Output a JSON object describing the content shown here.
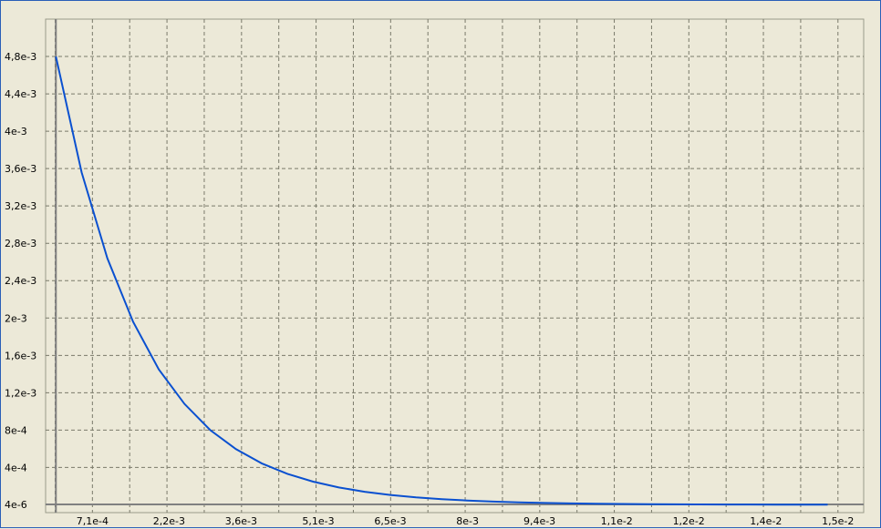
{
  "chart_data": {
    "type": "line",
    "title": "",
    "xlabel": "",
    "ylabel": "",
    "xlim": [
      -0.0002,
      0.0157
    ],
    "ylim": [
      -8.33e-05,
      0.0052
    ],
    "grid": true,
    "x_ticks": [
      {
        "value": 0.00071,
        "label": "7,1e-4"
      },
      {
        "value": 0.0022,
        "label": "2,2e-3"
      },
      {
        "value": 0.0036,
        "label": "3,6e-3"
      },
      {
        "value": 0.0051,
        "label": "5,1e-3"
      },
      {
        "value": 0.0065,
        "label": "6,5e-3"
      },
      {
        "value": 0.008,
        "label": "8e-3"
      },
      {
        "value": 0.0094,
        "label": "9,4e-3"
      },
      {
        "value": 0.0109,
        "label": "1,1e-2"
      },
      {
        "value": 0.0123,
        "label": "1,2e-2"
      },
      {
        "value": 0.0138,
        "label": "1,4e-2"
      },
      {
        "value": 0.0152,
        "label": "1,5e-2"
      }
    ],
    "y_ticks": [
      {
        "value": 4e-06,
        "label": "4e-6"
      },
      {
        "value": 0.0004,
        "label": "4e-4"
      },
      {
        "value": 0.0008,
        "label": "8e-4"
      },
      {
        "value": 0.0012,
        "label": "1,2e-3"
      },
      {
        "value": 0.0016,
        "label": "1,6e-3"
      },
      {
        "value": 0.002,
        "label": "2e-3"
      },
      {
        "value": 0.0024,
        "label": "2,4e-3"
      },
      {
        "value": 0.0028,
        "label": "2,8e-3"
      },
      {
        "value": 0.0032,
        "label": "3,2e-3"
      },
      {
        "value": 0.0036,
        "label": "3,6e-3"
      },
      {
        "value": 0.004,
        "label": "4e-3"
      },
      {
        "value": 0.0044,
        "label": "4,4e-3"
      },
      {
        "value": 0.0048,
        "label": "4,8e-3"
      }
    ],
    "series": [
      {
        "color": "#0A50D0",
        "x": [
          0.0,
          0.0005,
          0.001,
          0.0015,
          0.002,
          0.0025,
          0.003,
          0.0035,
          0.004,
          0.0045,
          0.005,
          0.0055,
          0.006,
          0.0065,
          0.007,
          0.0075,
          0.008,
          0.0085,
          0.009,
          0.0095,
          0.01,
          0.0105,
          0.011,
          0.0115,
          0.012,
          0.0125,
          0.013,
          0.0135,
          0.014,
          0.0145,
          0.015
        ],
        "y": [
          0.0048,
          0.00356,
          0.00264,
          0.00196,
          0.00145,
          0.00108,
          0.0008,
          0.000596,
          0.000444,
          0.000332,
          0.000248,
          0.000186,
          0.00014,
          0.000106,
          8e-05,
          6.06e-05,
          4.61e-05,
          3.51e-05,
          2.68e-05,
          2.05e-05,
          1.57e-05,
          1.2e-05,
          9.3e-06,
          7.2e-06,
          5.6e-06,
          4.4e-06,
          3.5e-06,
          2.8e-06,
          2.2e-06,
          1.8e-06,
          1.5e-06
        ]
      }
    ]
  }
}
